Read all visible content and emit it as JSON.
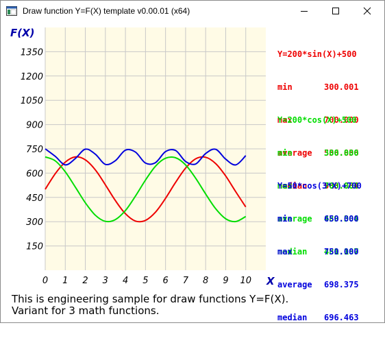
{
  "window": {
    "title": "Draw function Y=F(X) template v0.00.01 (x64)"
  },
  "caption": {
    "line1": "This is engineering sample for draw functions Y=F(X).",
    "line2": "Variant for 3 math functions."
  },
  "colors": {
    "plot_background": "#fffbe6",
    "grid": "#c8c8c8",
    "axis_text": "#0000aa",
    "series_1": "#ee0000",
    "series_2": "#00dd00",
    "series_3": "#0000dd"
  },
  "stats": [
    {
      "formula": "Y=200*sin(X)+500",
      "color": "#ee0000",
      "min_label": "min",
      "min_value": "300.001",
      "max_label": "max",
      "max_value": "700.000",
      "average_label": "average",
      "average_value": "536.836",
      "median_label": "median",
      "median_value": "563.064"
    },
    {
      "formula": "Y=200*cos(X)+500",
      "color": "#00dd00",
      "min_label": "min",
      "min_value": "300.000",
      "max_label": "max",
      "max_value": "700.000",
      "average_label": "average",
      "average_value": "489.304",
      "median_label": "median",
      "median_value": "481.187"
    },
    {
      "formula": "Y=50*cos(3*X)+700",
      "color": "#0000dd",
      "min_label": "min",
      "min_value": "650.000",
      "max_label": "max",
      "max_value": "750.000",
      "average_label": "average",
      "average_value": "698.375",
      "median_label": "median",
      "median_value": "696.463"
    }
  ],
  "chart_data": {
    "type": "line",
    "title": "",
    "xlabel": "X",
    "ylabel": "F(X)",
    "xlim": [
      0,
      11
    ],
    "ylim": [
      0,
      1500
    ],
    "xticks": [
      "0",
      "1",
      "2",
      "3",
      "4",
      "5",
      "6",
      "7",
      "8",
      "9",
      "10"
    ],
    "yticks": [
      "150",
      "300",
      "450",
      "600",
      "750",
      "900",
      "1050",
      "1200",
      "1350"
    ],
    "grid": true,
    "legend": "none",
    "x": [
      0,
      0.5,
      1,
      1.5,
      2,
      2.5,
      3,
      3.5,
      4,
      4.5,
      5,
      5.5,
      6,
      6.5,
      7,
      7.5,
      8,
      8.5,
      9,
      9.5,
      10
    ],
    "series": [
      {
        "name": "Y=200*sin(X)+500",
        "color": "#ee0000",
        "values": [
          500,
          596,
          668,
          700,
          682,
          620,
          528,
          430,
          349,
          304,
          308,
          359,
          444,
          543,
          631,
          688,
          698,
          659,
          582,
          485,
          391
        ]
      },
      {
        "name": "Y=200*cos(X)+500",
        "color": "#00dd00",
        "values": [
          700,
          676,
          608,
          514,
          417,
          340,
          302,
          313,
          369,
          458,
          557,
          643,
          692,
          695,
          651,
          569,
          471,
          380,
          318,
          301,
          332
        ]
      },
      {
        "name": "Y=50*cos(3*X)+700",
        "color": "#0000dd",
        "values": [
          750,
          704,
          651,
          690,
          748,
          717,
          654,
          677,
          742,
          730,
          662,
          665,
          733,
          740,
          672,
          656,
          721,
          747,
          686,
          651,
          708
        ]
      }
    ]
  }
}
